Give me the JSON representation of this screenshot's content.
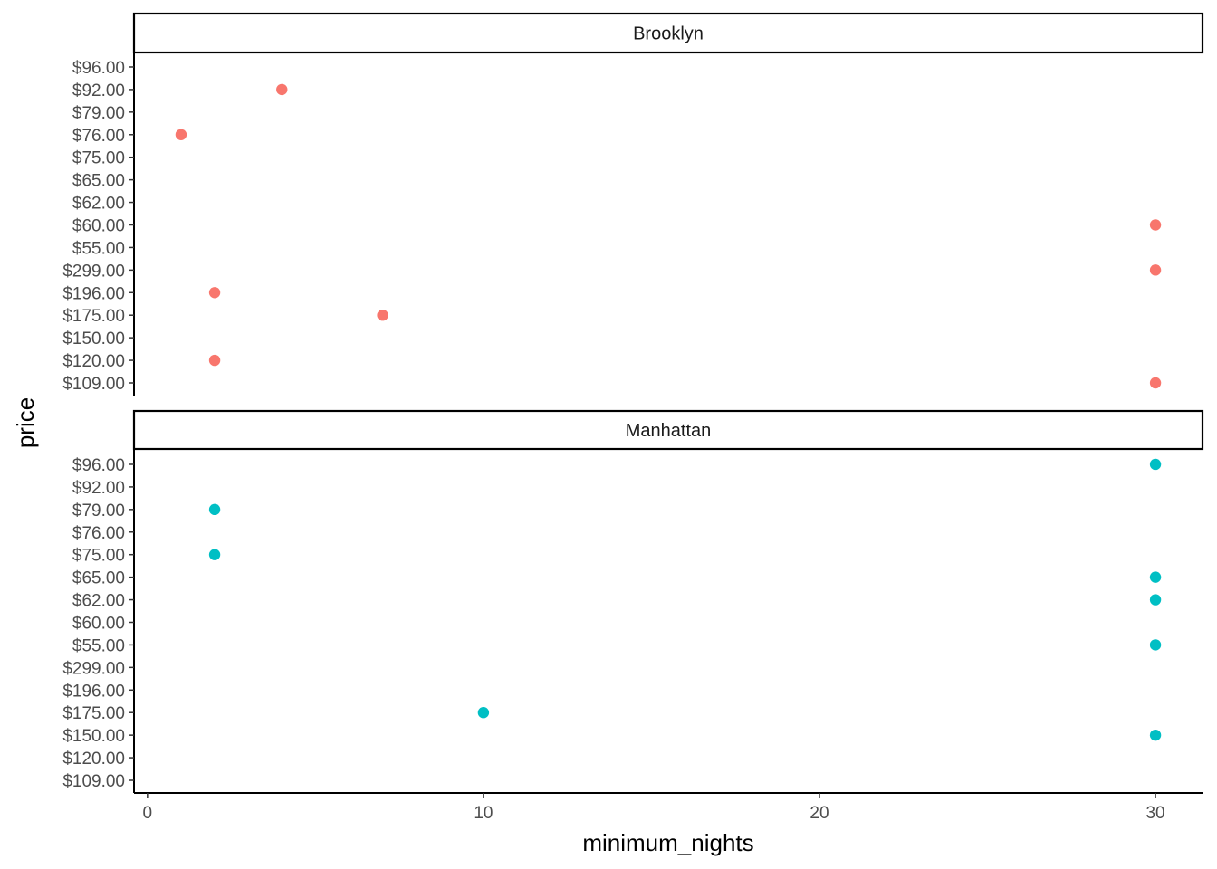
{
  "chart_data": {
    "type": "scatter",
    "xlabel": "minimum_nights",
    "ylabel": "price",
    "xlim": [
      -0.4,
      31.4
    ],
    "x_ticks": [
      0,
      10,
      20,
      30
    ],
    "x_tick_labels": [
      "0",
      "10",
      "20",
      "30"
    ],
    "y_categories": [
      "$109.00",
      "$120.00",
      "$150.00",
      "$175.00",
      "$196.00",
      "$299.00",
      "$55.00",
      "$60.00",
      "$62.00",
      "$65.00",
      "$75.00",
      "$76.00",
      "$79.00",
      "$92.00",
      "$96.00"
    ],
    "grid": false,
    "legend": "none",
    "panels": [
      {
        "strip": "Brooklyn",
        "color": "#F8766D",
        "points": [
          {
            "x": 4,
            "y": "$92.00"
          },
          {
            "x": 1,
            "y": "$76.00"
          },
          {
            "x": 30,
            "y": "$60.00"
          },
          {
            "x": 30,
            "y": "$299.00"
          },
          {
            "x": 2,
            "y": "$196.00"
          },
          {
            "x": 7,
            "y": "$175.00"
          },
          {
            "x": 2,
            "y": "$120.00"
          },
          {
            "x": 30,
            "y": "$109.00"
          }
        ]
      },
      {
        "strip": "Manhattan",
        "color": "#00BFC4",
        "points": [
          {
            "x": 30,
            "y": "$96.00"
          },
          {
            "x": 2,
            "y": "$79.00"
          },
          {
            "x": 2,
            "y": "$75.00"
          },
          {
            "x": 30,
            "y": "$65.00"
          },
          {
            "x": 30,
            "y": "$62.00"
          },
          {
            "x": 30,
            "y": "$55.00"
          },
          {
            "x": 10,
            "y": "$175.00"
          },
          {
            "x": 30,
            "y": "$150.00"
          }
        ]
      }
    ]
  }
}
